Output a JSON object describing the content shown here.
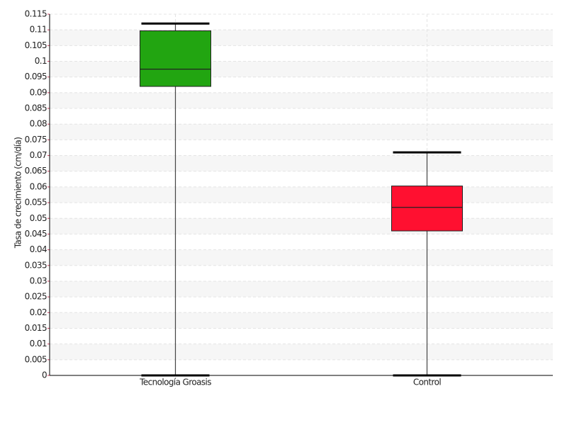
{
  "chart_data": {
    "type": "box",
    "y_label": "Tasa de crecimiento (cm/día)",
    "categories": [
      "Tecnología Groasis",
      "Control"
    ],
    "boxes": [
      {
        "min": 0,
        "q1": 0.092,
        "median": 0.0975,
        "q3": 0.1097,
        "max": 0.112,
        "color": "#22a511"
      },
      {
        "min": 0,
        "q1": 0.046,
        "median": 0.0535,
        "q3": 0.0603,
        "max": 0.071,
        "color": "#ff1030"
      }
    ],
    "ylim": [
      0,
      0.115
    ],
    "yticks": [
      0,
      0.005,
      0.01,
      0.015,
      0.02,
      0.025,
      0.03,
      0.035,
      0.04,
      0.045,
      0.05,
      0.055,
      0.06,
      0.065,
      0.07,
      0.075,
      0.08,
      0.085,
      0.09,
      0.095,
      0.1,
      0.105,
      0.11,
      0.115
    ],
    "grid": true
  }
}
